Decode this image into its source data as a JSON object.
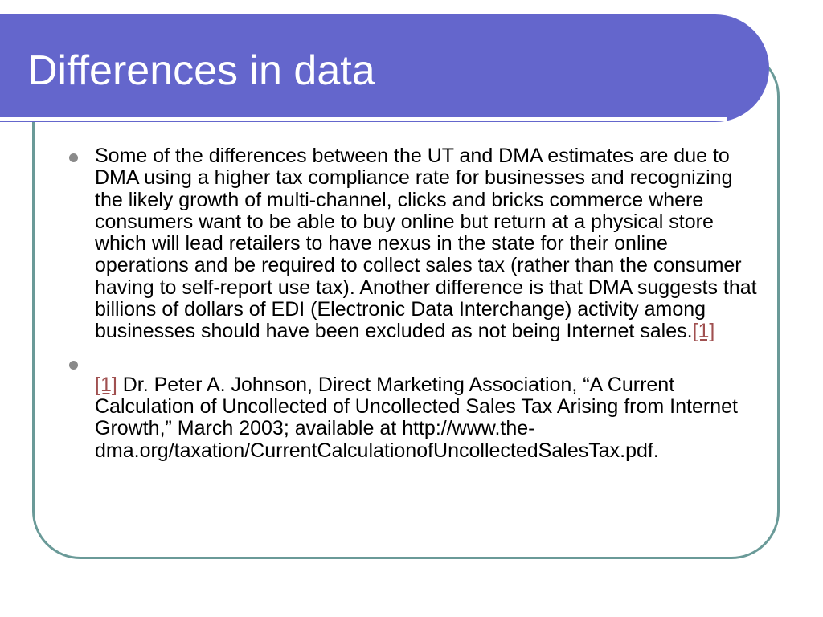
{
  "slide": {
    "title": "Differences in data",
    "bullets": [
      {
        "text": "Some of the differences between the UT and DMA estimates are due to DMA using a higher tax compliance rate for businesses and recognizing the likely growth of multi-channel, clicks and bricks commerce where consumers want to be able to buy online but return at a physical store which will lead retailers to have nexus in the state for their online operations and be required to collect sales tax (rather than the consumer having to self-report use tax). Another difference is that DMA suggests that billions of dollars of EDI (Electronic Data Interchange) activity among businesses should have been excluded as not being Internet sales.",
        "ref": "[1]"
      },
      {
        "ref": "[1]",
        "text": " Dr. Peter A. Johnson, Direct Marketing Association, “A Current Calculation of Uncollected of Uncollected Sales Tax Arising from Internet Growth,” March 2003; available at http://www.the-dma.org/taxation/CurrentCalculationofUncollectedSalesTax.pdf."
      }
    ]
  },
  "colors": {
    "title_banner": "#6466cc",
    "frame_border": "#6a9a98",
    "bullet": "#8a8a8a",
    "link": "#a05050"
  }
}
